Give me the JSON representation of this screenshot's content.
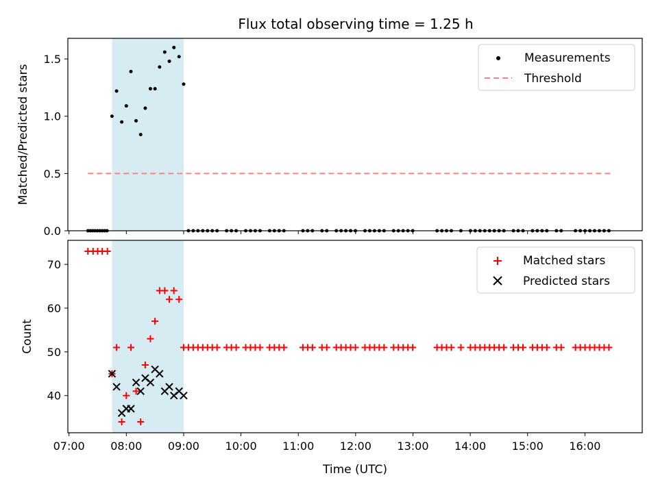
{
  "chart_data": {
    "title": "Flux total observing time = 1.25 h",
    "xlabel": "Time (UTC)",
    "xlim": [
      6.98,
      17.0
    ],
    "xticks": [
      {
        "v": 7,
        "label": "07:00"
      },
      {
        "v": 8,
        "label": "08:00"
      },
      {
        "v": 9,
        "label": "09:00"
      },
      {
        "v": 10,
        "label": "10:00"
      },
      {
        "v": 11,
        "label": "11:00"
      },
      {
        "v": 12,
        "label": "12:00"
      },
      {
        "v": 13,
        "label": "13:00"
      },
      {
        "v": 14,
        "label": "14:00"
      },
      {
        "v": 15,
        "label": "15:00"
      },
      {
        "v": 16,
        "label": "16:00"
      }
    ],
    "highlight_span": [
      7.75,
      9.0
    ],
    "colors": {
      "span": "#add8e6",
      "threshold": "#ff8080",
      "matched": "#ff0000",
      "predicted": "#000000",
      "measurements": "#000000"
    },
    "top": {
      "type": "scatter",
      "ylabel": "Matched/Predicted stars",
      "ylim": [
        0,
        1.68
      ],
      "yticks": [
        {
          "v": 0,
          "label": "0.0"
        },
        {
          "v": 0.5,
          "label": "0.5"
        },
        {
          "v": 1.0,
          "label": "1.0"
        },
        {
          "v": 1.5,
          "label": "1.5"
        }
      ],
      "threshold": {
        "value": 0.5,
        "x": [
          7.33,
          16.5
        ]
      },
      "legend": {
        "measurements": "Measurements",
        "threshold": "Threshold",
        "placement": "upper right"
      },
      "measurements": [
        [
          7.75,
          1.0
        ],
        [
          7.83,
          1.22
        ],
        [
          7.92,
          0.95
        ],
        [
          8.0,
          1.09
        ],
        [
          8.08,
          1.39
        ],
        [
          8.17,
          0.96
        ],
        [
          8.25,
          0.84
        ],
        [
          8.33,
          1.07
        ],
        [
          8.42,
          1.24
        ],
        [
          8.5,
          1.24
        ],
        [
          8.58,
          1.43
        ],
        [
          8.67,
          1.56
        ],
        [
          8.75,
          1.48
        ],
        [
          8.83,
          1.6
        ],
        [
          8.92,
          1.52
        ],
        [
          9.0,
          1.28
        ]
      ]
    },
    "bottom": {
      "type": "scatter",
      "ylabel": "Count",
      "ylim": [
        31.5,
        75.5
      ],
      "yticks": [
        {
          "v": 40,
          "label": "40"
        },
        {
          "v": 50,
          "label": "50"
        },
        {
          "v": 60,
          "label": "60"
        },
        {
          "v": 70,
          "label": "70"
        }
      ],
      "legend": {
        "matched": "Matched stars",
        "predicted": "Predicted stars",
        "placement": "upper right"
      },
      "matched": [
        [
          7.33,
          73
        ],
        [
          7.42,
          73
        ],
        [
          7.5,
          73
        ],
        [
          7.58,
          73
        ],
        [
          7.67,
          73
        ],
        [
          7.75,
          45
        ],
        [
          7.83,
          51
        ],
        [
          7.92,
          34
        ],
        [
          8.0,
          40
        ],
        [
          8.08,
          51
        ],
        [
          8.17,
          41
        ],
        [
          8.25,
          34
        ],
        [
          8.33,
          47
        ],
        [
          8.42,
          53
        ],
        [
          8.5,
          57
        ],
        [
          8.58,
          64
        ],
        [
          8.67,
          64
        ],
        [
          8.75,
          62
        ],
        [
          8.83,
          64
        ],
        [
          8.92,
          62
        ]
      ],
      "predicted": [
        [
          7.75,
          45
        ],
        [
          7.83,
          42
        ],
        [
          7.92,
          36
        ],
        [
          8.0,
          37
        ],
        [
          8.08,
          37
        ],
        [
          8.17,
          43
        ],
        [
          8.25,
          41
        ],
        [
          8.33,
          44
        ],
        [
          8.42,
          43
        ],
        [
          8.5,
          46
        ],
        [
          8.58,
          45
        ],
        [
          8.67,
          41
        ],
        [
          8.75,
          42
        ],
        [
          8.83,
          40
        ],
        [
          8.92,
          41
        ],
        [
          9.0,
          40
        ]
      ],
      "baseline_value": 51,
      "baseline_segments": [
        [
          9.0,
          10.83
        ],
        [
          11.08,
          13.0
        ],
        [
          13.42,
          16.5
        ]
      ],
      "baseline_step_hours": 0.0833,
      "baseline_gaps": [
        9.67,
        10.0,
        10.42,
        11.17,
        11.33,
        11.58,
        12.08,
        12.42,
        12.58,
        13.58,
        13.75,
        13.92,
        14.08,
        14.67,
        15.0,
        15.33,
        15.42,
        15.67,
        15.75
      ]
    }
  }
}
